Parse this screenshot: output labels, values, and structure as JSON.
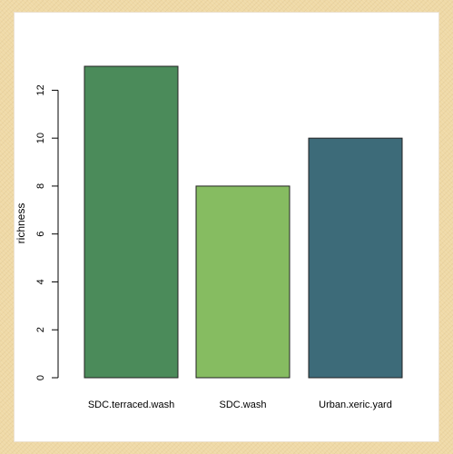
{
  "colors": {
    "border": "#efd9a6",
    "panel": "#ffffff",
    "axis": "#000000"
  },
  "chart_data": {
    "type": "bar",
    "categories": [
      "SDC.terraced.wash",
      "SDC.wash",
      "Urban.xeric.yard"
    ],
    "values": [
      13,
      8,
      10
    ],
    "bar_colors": [
      "#4b8b5a",
      "#86bc61",
      "#3d6b79"
    ],
    "title": "",
    "xlabel": "",
    "ylabel": "richness",
    "ylim": [
      0,
      13
    ],
    "yticks": [
      0,
      2,
      4,
      6,
      8,
      10,
      12
    ],
    "ytick_labels": [
      "0",
      "2",
      "4",
      "6",
      "8",
      "10",
      "12"
    ],
    "grid": false,
    "legend": "none"
  }
}
